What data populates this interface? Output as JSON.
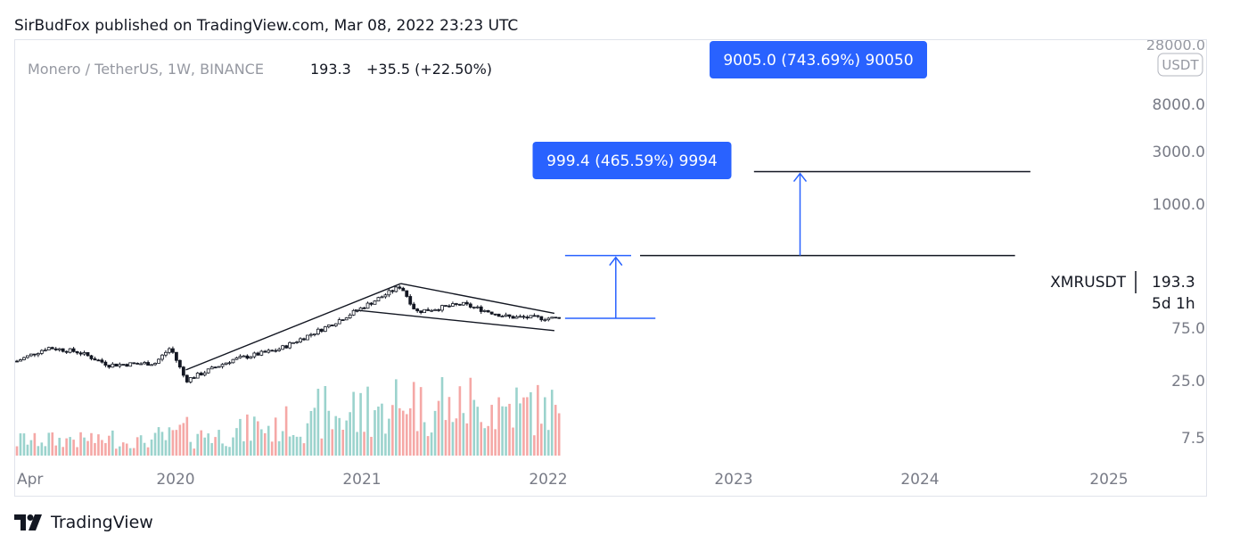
{
  "header": {
    "published_text": "SirBudFox published on TradingView.com, Mar 08, 2022 23:23 UTC"
  },
  "legend": {
    "symbol": "Monero / TetherUS, 1W, BINANCE",
    "price": "193.3",
    "change": "+35.5 (+22.50%)"
  },
  "price_axis": {
    "currency_badge": "USDT",
    "top_label": "28000.0",
    "ticks": [
      "8000.0",
      "3000.0",
      "1000.0",
      "75.0",
      "25.0",
      "7.5"
    ],
    "last_price_symbol": "XMRUSDT",
    "last_price": "193.3",
    "countdown": "5d 1h"
  },
  "time_axis": {
    "ticks": [
      "Apr",
      "2020",
      "2021",
      "2022",
      "2023",
      "2024",
      "2025"
    ]
  },
  "annotations": {
    "target1_label": "999.4 (465.59%) 9994",
    "target2_label": "9005.0 (743.69%) 90050"
  },
  "footer": {
    "brand": "TradingView"
  },
  "colors": {
    "up": "#26a69a",
    "down": "#ef5350",
    "candle": "#131722",
    "measure": "#2962ff",
    "label_bg": "#2962ff",
    "axis_text": "#787b86"
  },
  "chart_data": {
    "type": "candlestick",
    "symbol": "XMRUSDT",
    "interval": "1W",
    "exchange": "BINANCE",
    "y_scale": "log",
    "x_range": [
      "2019-04",
      "2025-03"
    ],
    "weekly_close_estimate": [
      {
        "date": "2019-04",
        "close": 63
      },
      {
        "date": "2019-06",
        "close": 90
      },
      {
        "date": "2019-08",
        "close": 80
      },
      {
        "date": "2019-10",
        "close": 57
      },
      {
        "date": "2020-01",
        "close": 60
      },
      {
        "date": "2020-02",
        "close": 90
      },
      {
        "date": "2020-03",
        "close": 38
      },
      {
        "date": "2020-06",
        "close": 65
      },
      {
        "date": "2020-09",
        "close": 85
      },
      {
        "date": "2020-12",
        "close": 150
      },
      {
        "date": "2021-02",
        "close": 230
      },
      {
        "date": "2021-05",
        "close": 450
      },
      {
        "date": "2021-06",
        "close": 230
      },
      {
        "date": "2021-09",
        "close": 280
      },
      {
        "date": "2021-12",
        "close": 200
      },
      {
        "date": "2022-03",
        "close": 193.3
      }
    ],
    "trendlines": [
      {
        "name": "rising support",
        "from": [
          "2020-03",
          50
        ],
        "to": [
          "2021-05",
          480
        ]
      },
      {
        "name": "upper channel",
        "from": [
          "2021-05",
          480
        ],
        "to": [
          "2022-03",
          220
        ]
      },
      {
        "name": "lower channel",
        "from": [
          "2021-02",
          240
        ],
        "to": [
          "2022-03",
          140
        ]
      }
    ],
    "targets": [
      {
        "level": 1000,
        "measured_move": "999.4 (465.59%) 9994"
      },
      {
        "level": 9000,
        "measured_move": "9005.0 (743.69%) 90050"
      }
    ]
  }
}
